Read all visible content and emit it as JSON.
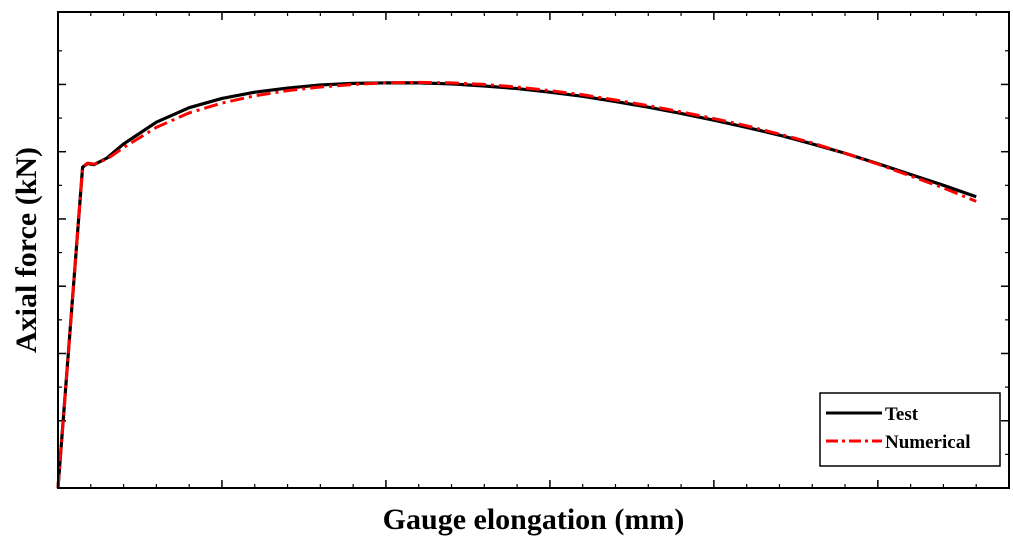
{
  "chart_data": {
    "type": "line",
    "title": "",
    "xlabel": "Gauge elongation (mm)",
    "ylabel": "Axial force (kN)",
    "tick_labels_shown": false,
    "legend_position": "bottom-right",
    "series": [
      {
        "name": "Test",
        "color": "#000000",
        "style": "solid",
        "points": [
          [
            0.0,
            0.0
          ],
          [
            0.75,
            0.62
          ],
          [
            0.9,
            0.627
          ],
          [
            1.1,
            0.625
          ],
          [
            1.5,
            0.638
          ],
          [
            2.0,
            0.665
          ],
          [
            3.0,
            0.707
          ],
          [
            4.0,
            0.735
          ],
          [
            5.0,
            0.753
          ],
          [
            6.0,
            0.765
          ],
          [
            7.0,
            0.773
          ],
          [
            8.0,
            0.779
          ],
          [
            9.0,
            0.782
          ],
          [
            10.0,
            0.783
          ],
          [
            11.0,
            0.783
          ],
          [
            12.0,
            0.781
          ],
          [
            13.0,
            0.777
          ],
          [
            14.0,
            0.772
          ],
          [
            15.0,
            0.765
          ],
          [
            16.0,
            0.757
          ],
          [
            17.0,
            0.747
          ],
          [
            18.0,
            0.736
          ],
          [
            19.0,
            0.724
          ],
          [
            20.0,
            0.711
          ],
          [
            21.0,
            0.697
          ],
          [
            22.0,
            0.682
          ],
          [
            23.0,
            0.665
          ],
          [
            24.0,
            0.647
          ],
          [
            25.0,
            0.627
          ],
          [
            26.0,
            0.606
          ],
          [
            27.0,
            0.585
          ],
          [
            28.0,
            0.563
          ]
        ]
      },
      {
        "name": "Numerical",
        "color": "#ff0000",
        "style": "dash-dot",
        "points": [
          [
            0.0,
            0.0
          ],
          [
            0.75,
            0.62
          ],
          [
            0.9,
            0.628
          ],
          [
            1.1,
            0.626
          ],
          [
            1.5,
            0.636
          ],
          [
            2.0,
            0.658
          ],
          [
            3.0,
            0.697
          ],
          [
            4.0,
            0.725
          ],
          [
            5.0,
            0.744
          ],
          [
            6.0,
            0.758
          ],
          [
            7.0,
            0.768
          ],
          [
            8.0,
            0.775
          ],
          [
            9.0,
            0.78
          ],
          [
            10.0,
            0.783
          ],
          [
            11.0,
            0.784
          ],
          [
            12.0,
            0.783
          ],
          [
            13.0,
            0.78
          ],
          [
            14.0,
            0.775
          ],
          [
            15.0,
            0.768
          ],
          [
            16.0,
            0.76
          ],
          [
            17.0,
            0.75
          ],
          [
            18.0,
            0.739
          ],
          [
            19.0,
            0.727
          ],
          [
            20.0,
            0.714
          ],
          [
            21.0,
            0.7
          ],
          [
            22.0,
            0.684
          ],
          [
            23.0,
            0.667
          ],
          [
            24.0,
            0.647
          ],
          [
            25.0,
            0.626
          ],
          [
            26.0,
            0.603
          ],
          [
            27.0,
            0.58
          ],
          [
            28.0,
            0.554
          ]
        ]
      }
    ],
    "xlim": [
      0,
      29
    ],
    "ylim": [
      0,
      0.92
    ],
    "x_major_ticks": [
      5,
      10,
      15,
      20,
      25
    ],
    "y_major_ticks": [
      0.13,
      0.26,
      0.39,
      0.52,
      0.65,
      0.78
    ],
    "grid": false
  }
}
